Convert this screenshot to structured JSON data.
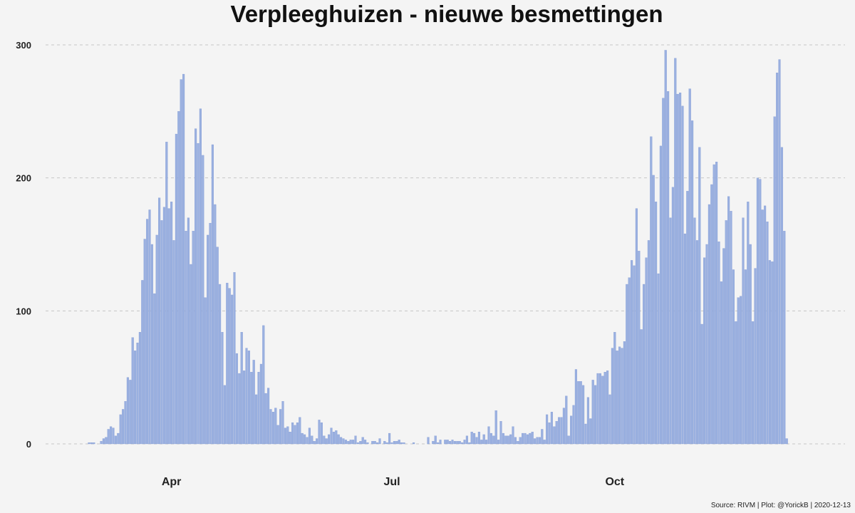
{
  "chart_data": {
    "type": "bar",
    "title": "Verpleeghuizen - nieuwe besmettingen",
    "xlabel": "",
    "ylabel": "",
    "x_start": "2020-02-27",
    "x_end": "2020-12-13",
    "ylim": [
      0,
      300
    ],
    "yticks": [
      "0",
      "100",
      "200",
      "300"
    ],
    "xticks": [
      {
        "label": "Apr",
        "date": "2020-04-01"
      },
      {
        "label": "Jul",
        "date": "2020-07-01"
      },
      {
        "label": "Oct",
        "date": "2020-10-01"
      }
    ],
    "grid": true,
    "bar_color": "#9ab0e0",
    "bar_edge_color": "#7a93d1",
    "caption": "Source: RIVM | Plot: @YorickB |  2020-12-13",
    "values": [
      1,
      1,
      1,
      0,
      0,
      2,
      4,
      5,
      11,
      13,
      12,
      6,
      8,
      22,
      26,
      32,
      50,
      48,
      80,
      70,
      76,
      84,
      123,
      154,
      169,
      176,
      150,
      113,
      157,
      185,
      168,
      178,
      227,
      177,
      182,
      153,
      233,
      250,
      274,
      278,
      160,
      170,
      135,
      160,
      237,
      226,
      252,
      217,
      110,
      157,
      166,
      225,
      180,
      148,
      120,
      84,
      44,
      121,
      117,
      112,
      129,
      68,
      53,
      84,
      55,
      72,
      70,
      54,
      63,
      37,
      54,
      60,
      89,
      38,
      42,
      26,
      24,
      27,
      14,
      26,
      32,
      12,
      13,
      9,
      16,
      14,
      16,
      20,
      8,
      7,
      5,
      12,
      6,
      2,
      4,
      18,
      16,
      6,
      4,
      7,
      12,
      9,
      10,
      7,
      5,
      4,
      3,
      2,
      3,
      3,
      6,
      1,
      2,
      5,
      3,
      1,
      0,
      2,
      2,
      1,
      4,
      0,
      2,
      1,
      8,
      1,
      2,
      2,
      3,
      1,
      1,
      0,
      0,
      0,
      1,
      0,
      0,
      0,
      0,
      0,
      5,
      0,
      2,
      6,
      1,
      3,
      0,
      3,
      3,
      2,
      3,
      2,
      2,
      2,
      1,
      3,
      6,
      1,
      9,
      8,
      5,
      9,
      3,
      7,
      3,
      13,
      8,
      6,
      25,
      3,
      17,
      8,
      6,
      6,
      7,
      13,
      5,
      2,
      5,
      8,
      8,
      7,
      8,
      9,
      4,
      5,
      5,
      11,
      3,
      22,
      16,
      24,
      13,
      17,
      20,
      20,
      27,
      36,
      6,
      21,
      29,
      56,
      47,
      47,
      44,
      15,
      35,
      19,
      48,
      44,
      53,
      53,
      51,
      54,
      55,
      37,
      72,
      84,
      70,
      73,
      72,
      77,
      120,
      125,
      138,
      134,
      177,
      145,
      86,
      120,
      140,
      153,
      231,
      202,
      182,
      128,
      224,
      260,
      296,
      265,
      170,
      193,
      290,
      263,
      264,
      254,
      158,
      190,
      267,
      243,
      170,
      153,
      223,
      90,
      140,
      150,
      180,
      195,
      210,
      212,
      152,
      122,
      147,
      168,
      186,
      175,
      131,
      92,
      110,
      111,
      170,
      131,
      182,
      150,
      92,
      132,
      200,
      199,
      176,
      179,
      167,
      138,
      137,
      246,
      279,
      289,
      223,
      160,
      4
    ]
  }
}
